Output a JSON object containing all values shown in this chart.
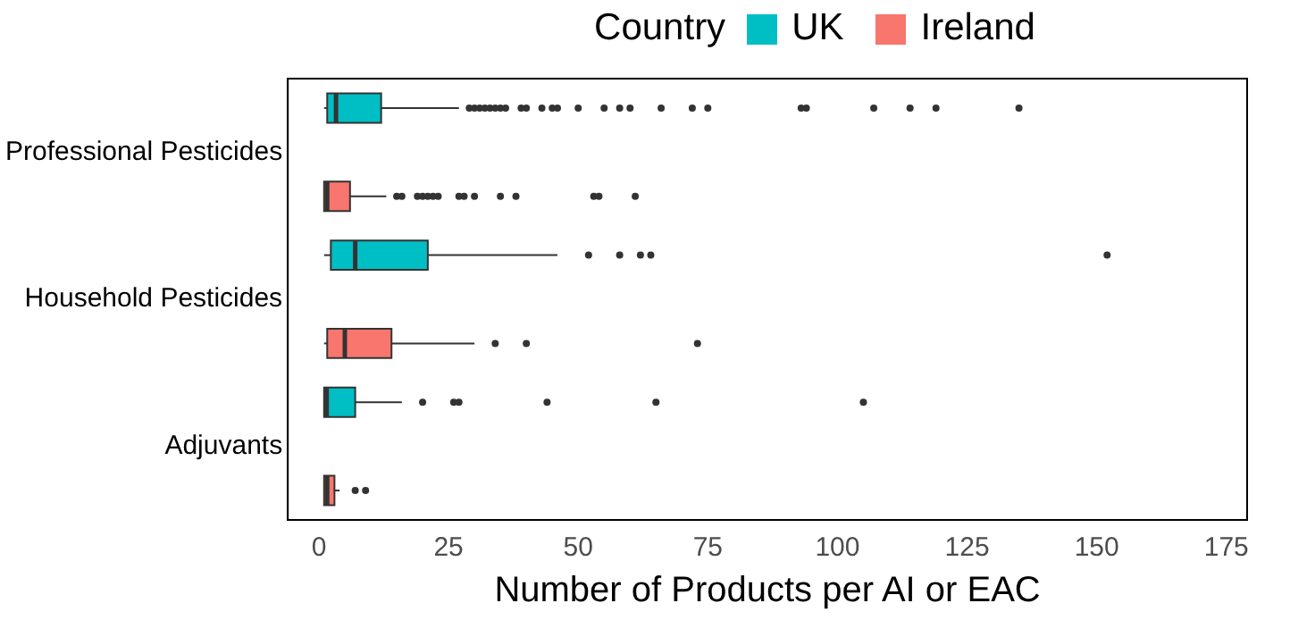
{
  "chart_data": {
    "type": "box",
    "orientation": "horizontal",
    "categories": [
      "Professional Pesticides",
      "Household Pesticides",
      "Adjuvants"
    ],
    "xlabel": "Number of Products per AI or EAC",
    "legend_title": "Country",
    "legend": "top",
    "grid": false,
    "marker": "circle",
    "xlim": [
      -6,
      179
    ],
    "xticks": [
      0,
      25,
      50,
      75,
      100,
      125,
      150,
      175
    ],
    "series": [
      {
        "name": "UK",
        "color": "#00bfc4",
        "boxes": [
          {
            "low": 1,
            "q1": 1.6,
            "median": 3.3,
            "q3": 12,
            "high": 27,
            "outliers": [
              29,
              30,
              31,
              32,
              33,
              34,
              35,
              36,
              39,
              40,
              43,
              45,
              46,
              50,
              55,
              58,
              60,
              66,
              72,
              75,
              93,
              94,
              107,
              114,
              119,
              135
            ]
          },
          {
            "low": 1,
            "q1": 2.3,
            "median": 7,
            "q3": 21,
            "high": 46,
            "outliers": [
              52,
              58,
              62,
              64,
              152
            ]
          },
          {
            "low": 1,
            "q1": 1,
            "median": 1.5,
            "q3": 7,
            "high": 16,
            "outliers": [
              20,
              26,
              27,
              44,
              65,
              105
            ]
          }
        ]
      },
      {
        "name": "Ireland",
        "color": "#f8766d",
        "boxes": [
          {
            "low": 1,
            "q1": 1,
            "median": 1.6,
            "q3": 6,
            "high": 13,
            "outliers": [
              15,
              16,
              19,
              20,
              21,
              22,
              23,
              27,
              28,
              30,
              35,
              38,
              53,
              54,
              61
            ]
          },
          {
            "low": 1,
            "q1": 1.6,
            "median": 5,
            "q3": 14,
            "high": 30,
            "outliers": [
              34,
              40,
              73
            ]
          },
          {
            "low": 1,
            "q1": 1,
            "median": 1.6,
            "q3": 3,
            "high": 4,
            "outliers": [
              7,
              9
            ]
          }
        ]
      }
    ]
  }
}
